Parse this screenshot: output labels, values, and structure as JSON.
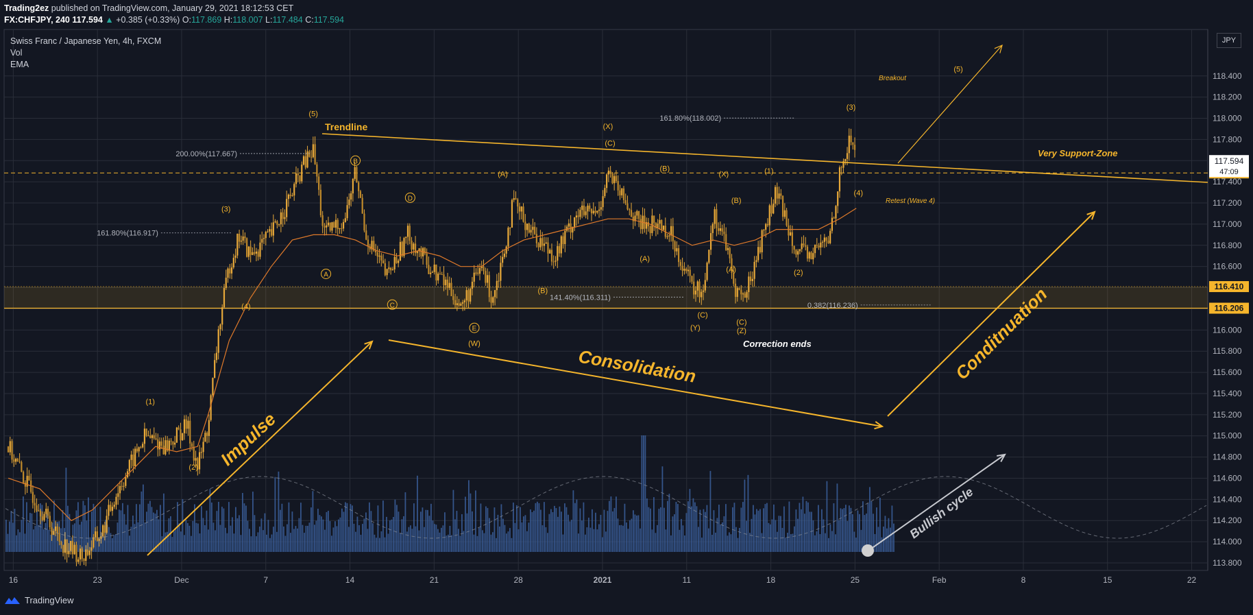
{
  "header": {
    "publisher": "Trading2ez",
    "published_text": "published on TradingView.com, January 29, 2021 18:12:53 CET",
    "symbol": "FX:CHFJPY, 240",
    "last": "117.594",
    "change": "+0.385 (+0.33%)",
    "open_label": "O:",
    "open": "117.869",
    "high_label": "H:",
    "high": "118.007",
    "low_label": "L:",
    "low": "117.484",
    "close_label": "C:",
    "close": "117.594"
  },
  "legend": {
    "title": "Swiss Franc / Japanese Yen, 4h, FXCM",
    "vol": "Vol",
    "ema": "EMA"
  },
  "currency_button": "JPY",
  "footer": {
    "brand": "TradingView"
  },
  "colors": {
    "background": "#131722",
    "accent": "#f5b52c",
    "candle": "#e8a93a",
    "volume": "#3b5f9c",
    "ema": "#e07a2a",
    "grid": "#2a2e39"
  },
  "chart_data": {
    "type": "candlestick",
    "ylim": [
      113.6,
      118.6
    ],
    "y_ticks": [
      "118.400",
      "118.200",
      "118.000",
      "117.800",
      "117.600",
      "117.400",
      "117.200",
      "117.000",
      "116.800",
      "116.600",
      "116.400",
      "116.200",
      "116.000",
      "115.800",
      "115.600",
      "115.400",
      "115.200",
      "115.000",
      "114.800",
      "114.600",
      "114.400",
      "114.200",
      "114.000",
      "113.800"
    ],
    "x_ticks": [
      "16",
      "23",
      "Dec",
      "7",
      "14",
      "21",
      "28",
      "2021",
      "11",
      "18",
      "25",
      "Feb",
      "8",
      "15",
      "22"
    ],
    "price_path": [
      [
        0,
        114.9
      ],
      [
        2,
        114.5
      ],
      [
        5,
        114.0
      ],
      [
        7,
        113.85
      ],
      [
        9,
        114.1
      ],
      [
        10,
        114.4
      ],
      [
        12,
        114.8
      ],
      [
        13,
        115.0
      ],
      [
        15,
        114.9
      ],
      [
        17,
        115.1
      ],
      [
        18,
        114.7
      ],
      [
        19,
        115.1
      ],
      [
        20,
        116.0
      ],
      [
        21,
        116.6
      ],
      [
        22,
        116.9
      ],
      [
        23,
        116.7
      ],
      [
        25,
        116.9
      ],
      [
        27,
        117.3
      ],
      [
        28,
        117.55
      ],
      [
        29,
        117.7
      ],
      [
        30,
        116.9
      ],
      [
        32,
        117.05
      ],
      [
        33,
        117.5
      ],
      [
        34,
        116.9
      ],
      [
        36,
        116.5
      ],
      [
        38,
        116.9
      ],
      [
        40,
        116.6
      ],
      [
        42,
        116.4
      ],
      [
        43,
        116.2
      ],
      [
        45,
        116.6
      ],
      [
        46,
        116.3
      ],
      [
        47,
        116.7
      ],
      [
        48,
        117.2
      ],
      [
        50,
        116.9
      ],
      [
        52,
        116.7
      ],
      [
        54,
        117.1
      ],
      [
        56,
        117.1
      ],
      [
        57,
        117.5
      ],
      [
        58,
        117.3
      ],
      [
        60,
        117.0
      ],
      [
        62,
        117.0
      ],
      [
        63,
        116.9
      ],
      [
        65,
        116.4
      ],
      [
        66,
        116.35
      ],
      [
        67,
        117.1
      ],
      [
        68,
        116.9
      ],
      [
        69,
        116.4
      ],
      [
        70,
        116.3
      ],
      [
        72,
        117.0
      ],
      [
        73,
        117.3
      ],
      [
        75,
        116.75
      ],
      [
        76,
        116.7
      ],
      [
        78,
        116.85
      ],
      [
        79,
        117.45
      ],
      [
        80,
        117.8
      ],
      [
        80.6,
        117.7
      ]
    ],
    "ema_path": [
      [
        0,
        114.6
      ],
      [
        3,
        114.5
      ],
      [
        6,
        114.2
      ],
      [
        8,
        114.3
      ],
      [
        10,
        114.5
      ],
      [
        12,
        114.7
      ],
      [
        14,
        114.9
      ],
      [
        16,
        114.85
      ],
      [
        18,
        114.9
      ],
      [
        19,
        115.2
      ],
      [
        21,
        115.9
      ],
      [
        23,
        116.3
      ],
      [
        25,
        116.6
      ],
      [
        27,
        116.85
      ],
      [
        29,
        116.9
      ],
      [
        31,
        116.9
      ],
      [
        33,
        116.85
      ],
      [
        35,
        116.75
      ],
      [
        37,
        116.7
      ],
      [
        39,
        116.75
      ],
      [
        41,
        116.7
      ],
      [
        43,
        116.6
      ],
      [
        45,
        116.6
      ],
      [
        47,
        116.75
      ],
      [
        49,
        116.85
      ],
      [
        51,
        116.9
      ],
      [
        53,
        116.95
      ],
      [
        55,
        117.0
      ],
      [
        57,
        117.05
      ],
      [
        59,
        117.05
      ],
      [
        61,
        117.0
      ],
      [
        63,
        116.9
      ],
      [
        65,
        116.8
      ],
      [
        67,
        116.85
      ],
      [
        69,
        116.8
      ],
      [
        71,
        116.85
      ],
      [
        73,
        116.95
      ],
      [
        75,
        116.95
      ],
      [
        77,
        116.95
      ],
      [
        79,
        117.05
      ],
      [
        80.6,
        117.15
      ]
    ],
    "fib_labels": [
      {
        "text": "200.00%(117.667)",
        "x": 21.5,
        "y": 117.667
      },
      {
        "text": "161.80%(116.917)",
        "x": 14,
        "y": 116.917
      },
      {
        "text": "161.80%(118.002)",
        "x": 67.5,
        "y": 118.002
      },
      {
        "text": "141.40%(116.311)",
        "x": 57,
        "y": 116.311
      },
      {
        "text": "0.382(116.236)",
        "x": 80.5,
        "y": 116.236
      }
    ],
    "levels": [
      {
        "text": "116.410",
        "price": 116.41
      },
      {
        "text": "116.206",
        "price": 116.206
      },
      {
        "text": "117.484",
        "price": 117.484
      }
    ],
    "last_price_label": "117.594",
    "countdown": "47:09",
    "annotations": {
      "trendline": "Trendline",
      "support_zone": "Very Support-Zone",
      "breakout": "Breakout",
      "retest": "Retest (Wave 4)",
      "correction_ends": "Correction ends",
      "impulse": "Impulse",
      "consolidation": "Consolidation",
      "continuation": "Conditnuation",
      "bullish_cycle": "Bullish cycle"
    },
    "wave_labels": [
      {
        "t": "(5)",
        "x": 29,
        "y": 118.02
      },
      {
        "t": "(3)",
        "x": 20.7,
        "y": 117.12
      },
      {
        "t": "(4)",
        "x": 22.6,
        "y": 116.2
      },
      {
        "t": "(1)",
        "x": 13.5,
        "y": 115.3
      },
      {
        "t": "(2)",
        "x": 17.6,
        "y": 114.68
      },
      {
        "t": "(X)",
        "x": 57,
        "y": 117.9
      },
      {
        "t": "(C)",
        "x": 57.2,
        "y": 117.74
      },
      {
        "t": "(A)",
        "x": 47,
        "y": 117.45
      },
      {
        "t": "(B)",
        "x": 50.8,
        "y": 116.35
      },
      {
        "t": "(W)",
        "x": 44.3,
        "y": 115.85
      },
      {
        "t": "(B)",
        "x": 62.4,
        "y": 117.5
      },
      {
        "t": "(A)",
        "x": 60.5,
        "y": 116.65
      },
      {
        "t": "(X)",
        "x": 68,
        "y": 117.45
      },
      {
        "t": "(C)",
        "x": 66,
        "y": 116.12
      },
      {
        "t": "(Y)",
        "x": 65.3,
        "y": 116.0
      },
      {
        "t": "(B)",
        "x": 69.2,
        "y": 117.2
      },
      {
        "t": "(A)",
        "x": 68.7,
        "y": 116.55
      },
      {
        "t": "(C)",
        "x": 69.7,
        "y": 116.05
      },
      {
        "t": "(Z)",
        "x": 69.7,
        "y": 115.97
      },
      {
        "t": "(1)",
        "x": 72.3,
        "y": 117.48
      },
      {
        "t": "(2)",
        "x": 75.1,
        "y": 116.52
      },
      {
        "t": "(3)",
        "x": 80.1,
        "y": 118.08
      },
      {
        "t": "(4)",
        "x": 80.8,
        "y": 117.27
      },
      {
        "t": "(5)",
        "x": 90.3,
        "y": 118.44
      }
    ],
    "circle_labels": [
      {
        "t": "B",
        "x": 33,
        "y": 117.6
      },
      {
        "t": "D",
        "x": 38.2,
        "y": 117.25
      },
      {
        "t": "A",
        "x": 30.2,
        "y": 116.53
      },
      {
        "t": "C",
        "x": 36.5,
        "y": 116.24
      },
      {
        "t": "E",
        "x": 44.3,
        "y": 116.02
      }
    ]
  }
}
